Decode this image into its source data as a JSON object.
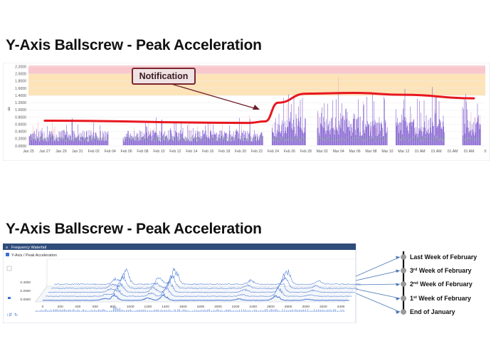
{
  "titles": {
    "top": "Y-Axis Ballscrew - Peak Acceleration",
    "bottom": "Y-Axis Ballscrew - Peak Acceleration"
  },
  "colors": {
    "alarm_band": "#f9c8cc",
    "warning_band": "#fde3b8",
    "trend": "#e8171f",
    "signal": "#6a3fc8",
    "waterfall_line": "#3b6fd0",
    "notification_border": "#7a2630"
  },
  "chart_data": [
    {
      "type": "line",
      "ylabel": "g",
      "ylim": [
        0,
        2.2
      ],
      "y_ticks": [
        "0.0000",
        "0.2000",
        "0.4000",
        "0.6000",
        "0.8000",
        "1.0000",
        "1.2000",
        "1.4000",
        "1.6000",
        "1.8000",
        "2.0000",
        "2.2000"
      ],
      "x_ticks": [
        "Jan 25",
        "Jan 27",
        "Jan 29",
        "Jan 31",
        "Feb 02",
        "Feb 04",
        "Feb 06",
        "Feb 08",
        "Feb 10",
        "Feb 12",
        "Feb 14",
        "Feb 16",
        "Feb 18",
        "Feb 20",
        "Feb 22",
        "Feb 24",
        "Feb 26",
        "Feb 28",
        "Mar 02",
        "Mar 04",
        "Mar 06",
        "Mar 08",
        "Mar 10",
        "Mar 12",
        "01 AM",
        "01 AM",
        "01 AM",
        "01 AM",
        "0"
      ],
      "bands": [
        {
          "name": "alarm",
          "from": 2.0,
          "to": 2.25
        },
        {
          "name": "warning",
          "from": 1.4,
          "to": 2.0
        }
      ],
      "annotation": "Notification",
      "trend": {
        "x": [
          1,
          13.5,
          14.5,
          15.3,
          17,
          20,
          23,
          27.3
        ],
        "y": [
          0.7,
          0.64,
          0.68,
          1.2,
          1.45,
          1.47,
          1.42,
          1.32
        ]
      }
    },
    {
      "type": "line",
      "panel_title": "Frequency Waterfall",
      "legend": "Y-Axis / Peak Acceleration",
      "y_ticks": [
        "0.4000",
        "0.2000",
        "0.0000"
      ],
      "x_ticks": [
        "0",
        "200",
        "400",
        "600",
        "800",
        "1000",
        "1200",
        "1400",
        "1600",
        "1800",
        "2000",
        "2200",
        "2400",
        "2600",
        "2800",
        "3000",
        "3200",
        "3400"
      ],
      "series": [
        {
          "name": "Last Week of February"
        },
        {
          "name": "3rd Week of February"
        },
        {
          "name": "2nd Week of February"
        },
        {
          "name": "1st Week of February"
        },
        {
          "name": "End of January"
        }
      ],
      "labels": [
        {
          "ordinal": "",
          "suffix": "",
          "rest": "Last Week of February"
        },
        {
          "ordinal": "3",
          "suffix": "rd",
          "rest": "  Week of February"
        },
        {
          "ordinal": "2",
          "suffix": "nd",
          "rest": " Week of February"
        },
        {
          "ordinal": "1",
          "suffix": "st",
          "rest": " Week of February"
        },
        {
          "ordinal": "",
          "suffix": "",
          "rest": "End of January"
        }
      ]
    }
  ]
}
